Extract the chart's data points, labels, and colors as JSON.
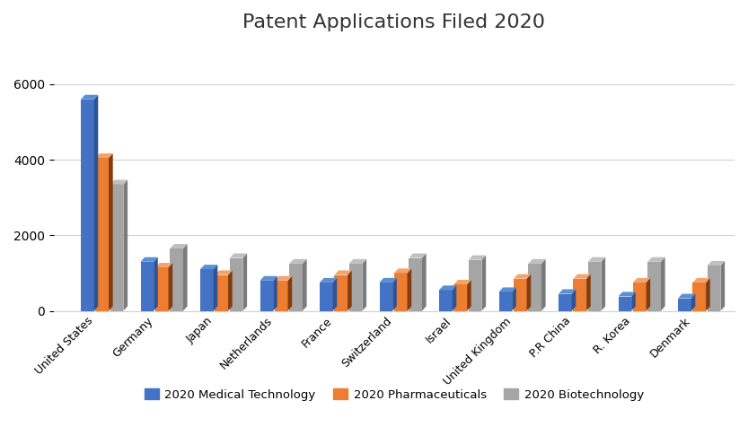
{
  "title": "Patent Applications Filed 2020",
  "categories": [
    "United States",
    "Germany",
    "Japan",
    "Netherlands",
    "France",
    "Switzerland",
    "Israel",
    "United Kingdom",
    "P.R China",
    "R. Korea",
    "Denmark"
  ],
  "series": {
    "2020 Medical Technology": [
      5600,
      1300,
      1100,
      800,
      750,
      750,
      550,
      500,
      450,
      380,
      330
    ],
    "2020 Pharmaceuticals": [
      4050,
      1150,
      950,
      800,
      950,
      1000,
      700,
      850,
      850,
      750,
      750
    ],
    "2020 Biotechnology": [
      3350,
      1650,
      1400,
      1250,
      1250,
      1400,
      1350,
      1250,
      1300,
      1300,
      1200
    ]
  },
  "colors": {
    "2020 Medical Technology": "#4472C4",
    "2020 Pharmaceuticals": "#ED7D31",
    "2020 Biotechnology": "#A5A5A5"
  },
  "dark_colors": {
    "2020 Medical Technology": "#2E5496",
    "2020 Pharmaceuticals": "#843C0C",
    "2020 Biotechnology": "#7B7B7B"
  },
  "top_colors": {
    "2020 Medical Technology": "#5B8FD4",
    "2020 Pharmaceuticals": "#F4A46A",
    "2020 Biotechnology": "#C0C0C0"
  },
  "ylim": [
    0,
    7000
  ],
  "yticks": [
    0,
    2000,
    4000,
    6000
  ],
  "background_color": "#FFFFFF",
  "legend_labels": [
    "2020 Medical Technology",
    "2020 Pharmaceuticals",
    "2020 Biotechnology"
  ]
}
